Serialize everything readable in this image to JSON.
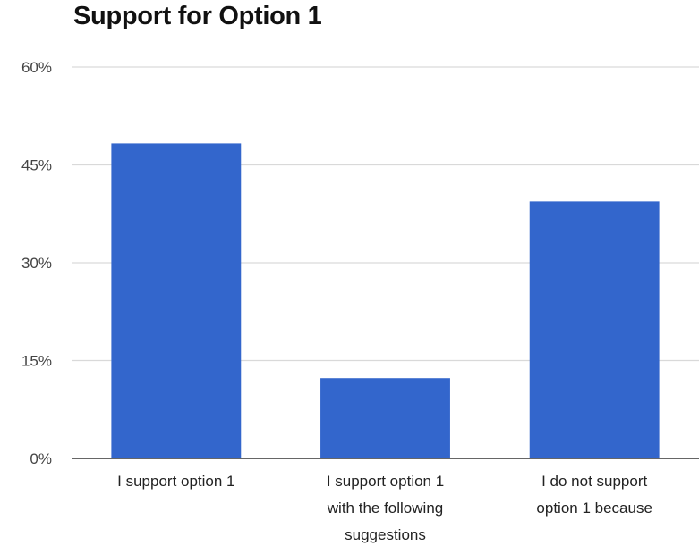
{
  "chart_data": {
    "type": "bar",
    "title": "Support for Option 1",
    "categories": [
      [
        "I support option 1"
      ],
      [
        "I support option 1",
        "with the following",
        "suggestions"
      ],
      [
        "I do not support",
        "option 1 because"
      ]
    ],
    "values": [
      48.3,
      12.3,
      39.4
    ],
    "ylim": [
      0,
      60
    ],
    "yticks": [
      0,
      15,
      30,
      45,
      60
    ],
    "ytick_labels": [
      "0%",
      "15%",
      "30%",
      "45%",
      "60%"
    ],
    "xlabel": "",
    "ylabel": "",
    "grid": true,
    "legend": "none",
    "colors": {
      "bar": "#3366cc",
      "grid": "#d9d9d9",
      "axis": "#333333"
    }
  }
}
